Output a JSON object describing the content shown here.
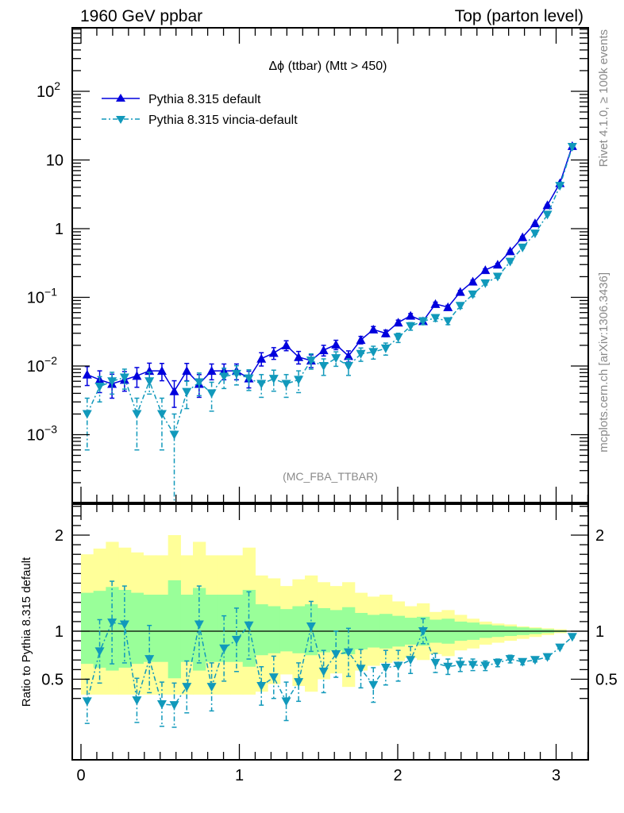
{
  "header": {
    "left": "1960 GeV ppbar",
    "right": "Top (parton level)"
  },
  "side_text": {
    "rivet": "Rivet 4.1.0, ≥ 100k events",
    "mcplots": "mcplots.cern.ch [arXiv:1306.3436]"
  },
  "chart_data": [
    {
      "type": "line",
      "panel": "main",
      "title": "Δϕ (ttbar) (Mtt > 450)",
      "watermark": "(MC_FBA_TTBAR)",
      "xlabel": "",
      "ylabel": "",
      "yscale": "log",
      "xlim": [
        0,
        3.2
      ],
      "ylim": [
        0.0001,
        900
      ],
      "x_ticks": [
        0,
        1,
        2,
        3
      ],
      "y_ticks": [
        "10^-3",
        "10^-2",
        "10^-1",
        "1",
        "10",
        "10^2"
      ],
      "legend_position": "top-left",
      "x": [
        0.039,
        0.118,
        0.196,
        0.275,
        0.353,
        0.432,
        0.511,
        0.589,
        0.668,
        0.746,
        0.825,
        0.903,
        0.982,
        1.06,
        1.139,
        1.217,
        1.296,
        1.374,
        1.453,
        1.532,
        1.61,
        1.689,
        1.767,
        1.846,
        1.924,
        2.003,
        2.081,
        2.16,
        2.238,
        2.317,
        2.395,
        2.474,
        2.553,
        2.631,
        2.71,
        2.788,
        2.867,
        2.945,
        3.024,
        3.102
      ],
      "series": [
        {
          "name": "Pythia 8.315 default",
          "color": "#0000dd",
          "marker": "triangle-up",
          "linestyle": "solid",
          "values": [
            0.0075,
            0.0063,
            0.0055,
            0.0063,
            0.0072,
            0.0085,
            0.0085,
            0.0043,
            0.0085,
            0.0055,
            0.0085,
            0.0085,
            0.0085,
            0.0066,
            0.0128,
            0.0155,
            0.02,
            0.0135,
            0.012,
            0.017,
            0.0205,
            0.014,
            0.024,
            0.034,
            0.03,
            0.043,
            0.054,
            0.045,
            0.08,
            0.072,
            0.12,
            0.17,
            0.25,
            0.3,
            0.47,
            0.75,
            1.2,
            2.2,
            4.6,
            16.0
          ],
          "err_lo": [
            0.0023,
            0.0022,
            0.0021,
            0.002,
            0.0023,
            0.0025,
            0.0024,
            0.0018,
            0.0024,
            0.002,
            0.0022,
            0.0022,
            0.0022,
            0.0018,
            0.0028,
            0.003,
            0.0033,
            0.0028,
            0.0025,
            0.003,
            0.0032,
            0.0026,
            0.003,
            0.0036,
            0.0033,
            0.0036,
            0.004,
            0.0036,
            0.005,
            0.0046,
            0.006,
            0.008,
            0.01,
            0.011,
            0.015,
            0.02,
            0.03,
            0.05,
            0.08,
            0.18
          ],
          "err_hi": [
            0.0023,
            0.0022,
            0.0021,
            0.002,
            0.0023,
            0.0025,
            0.0024,
            0.0018,
            0.0024,
            0.002,
            0.0022,
            0.0022,
            0.0022,
            0.0018,
            0.0028,
            0.003,
            0.0033,
            0.0028,
            0.0025,
            0.003,
            0.0032,
            0.0026,
            0.003,
            0.0036,
            0.0033,
            0.0036,
            0.004,
            0.0036,
            0.005,
            0.0046,
            0.006,
            0.008,
            0.01,
            0.011,
            0.015,
            0.02,
            0.03,
            0.05,
            0.08,
            0.18
          ]
        },
        {
          "name": "Pythia 8.315 vincia-default",
          "color": "#1199bb",
          "marker": "triangle-down",
          "linestyle": "dashdot",
          "values": [
            0.002,
            0.005,
            0.006,
            0.0068,
            0.002,
            0.006,
            0.002,
            0.001,
            0.0042,
            0.0058,
            0.004,
            0.007,
            0.0077,
            0.0066,
            0.0055,
            0.0065,
            0.0055,
            0.0063,
            0.012,
            0.01,
            0.013,
            0.01,
            0.015,
            0.016,
            0.018,
            0.026,
            0.038,
            0.045,
            0.05,
            0.045,
            0.075,
            0.11,
            0.16,
            0.2,
            0.33,
            0.53,
            0.85,
            1.6,
            4.2,
            15.5
          ],
          "err_lo": [
            0.0014,
            0.002,
            0.0021,
            0.0022,
            0.0014,
            0.0021,
            0.0014,
            0.001,
            0.0018,
            0.0021,
            0.0018,
            0.0023,
            0.0024,
            0.0022,
            0.002,
            0.0022,
            0.002,
            0.0022,
            0.003,
            0.0027,
            0.0031,
            0.0027,
            0.0033,
            0.0034,
            0.0036,
            0.004,
            0.0048,
            0.005,
            0.0052,
            0.005,
            0.006,
            0.008,
            0.009,
            0.01,
            0.013,
            0.017,
            0.02,
            0.04,
            0.07,
            0.17
          ],
          "err_hi": [
            0.0014,
            0.002,
            0.0021,
            0.0022,
            0.0014,
            0.0021,
            0.0014,
            0.001,
            0.0018,
            0.0021,
            0.0018,
            0.0023,
            0.0024,
            0.0022,
            0.002,
            0.0022,
            0.002,
            0.0022,
            0.003,
            0.0027,
            0.0031,
            0.0027,
            0.0033,
            0.0034,
            0.0036,
            0.004,
            0.0048,
            0.005,
            0.0052,
            0.005,
            0.006,
            0.008,
            0.009,
            0.01,
            0.013,
            0.017,
            0.02,
            0.04,
            0.07,
            0.17
          ]
        }
      ]
    },
    {
      "type": "line",
      "panel": "ratio",
      "ylabel": "Ratio to Pythia 8.315 default",
      "xlim": [
        0,
        3.2
      ],
      "ylim": [
        0.34,
        2.32
      ],
      "x_ticks": [
        "0",
        "1",
        "2",
        "3"
      ],
      "y_ticks": [
        "0.5",
        "1",
        "2"
      ],
      "reference_line": 1,
      "bin_edges_count": 40,
      "band_1sigma": {
        "color": "#99ff99",
        "lo": [
          0.66,
          0.62,
          0.59,
          0.62,
          0.66,
          0.68,
          0.68,
          0.51,
          0.68,
          0.59,
          0.68,
          0.68,
          0.68,
          0.63,
          0.75,
          0.77,
          0.79,
          0.77,
          0.75,
          0.78,
          0.8,
          0.76,
          0.81,
          0.83,
          0.82,
          0.84,
          0.86,
          0.85,
          0.88,
          0.87,
          0.9,
          0.91,
          0.93,
          0.94,
          0.95,
          0.96,
          0.97,
          0.98,
          0.99,
          1.0
        ],
        "hi": [
          1.4,
          1.42,
          1.46,
          1.43,
          1.4,
          1.38,
          1.38,
          1.53,
          1.38,
          1.45,
          1.38,
          1.38,
          1.38,
          1.43,
          1.28,
          1.26,
          1.23,
          1.26,
          1.28,
          1.24,
          1.22,
          1.25,
          1.19,
          1.17,
          1.18,
          1.16,
          1.14,
          1.15,
          1.12,
          1.13,
          1.1,
          1.09,
          1.07,
          1.06,
          1.05,
          1.04,
          1.03,
          1.02,
          1.01,
          1.0
        ]
      },
      "band_2sigma": {
        "color": "#ffff99",
        "lo": [
          0.34,
          0.34,
          0.34,
          0.34,
          0.34,
          0.34,
          0.34,
          0.34,
          0.34,
          0.34,
          0.34,
          0.34,
          0.34,
          0.34,
          0.37,
          0.45,
          0.55,
          0.43,
          0.37,
          0.5,
          0.56,
          0.42,
          0.59,
          0.64,
          0.67,
          0.69,
          0.72,
          0.7,
          0.76,
          0.74,
          0.8,
          0.82,
          0.86,
          0.88,
          0.9,
          0.92,
          0.94,
          0.96,
          0.98,
          1.0
        ],
        "hi": [
          1.8,
          1.86,
          1.93,
          1.87,
          1.82,
          1.79,
          1.79,
          2.0,
          1.79,
          1.93,
          1.79,
          1.79,
          1.79,
          1.87,
          1.58,
          1.55,
          1.47,
          1.54,
          1.58,
          1.51,
          1.47,
          1.51,
          1.4,
          1.36,
          1.38,
          1.31,
          1.26,
          1.29,
          1.2,
          1.22,
          1.17,
          1.13,
          1.1,
          1.08,
          1.07,
          1.05,
          1.04,
          1.03,
          1.02,
          1.0
        ]
      },
      "series": [
        {
          "name": "Pythia 8.315 vincia-default / default",
          "color": "#1199bb",
          "marker": "triangle-down",
          "values": [
            0.27,
            0.79,
            1.09,
            1.07,
            0.28,
            0.71,
            0.24,
            0.23,
            0.42,
            1.07,
            0.42,
            0.82,
            0.91,
            1.06,
            0.43,
            0.52,
            0.27,
            0.47,
            1.05,
            0.58,
            0.76,
            0.78,
            0.61,
            0.44,
            0.62,
            0.64,
            0.7,
            1.0,
            0.67,
            0.63,
            0.65,
            0.65,
            0.64,
            0.67,
            0.71,
            0.68,
            0.7,
            0.73,
            0.83,
            0.94
          ],
          "err_lo": [
            0.23,
            0.33,
            0.43,
            0.4,
            0.23,
            0.35,
            0.23,
            0.23,
            0.27,
            0.4,
            0.25,
            0.34,
            0.33,
            0.35,
            0.2,
            0.22,
            0.2,
            0.2,
            0.26,
            0.22,
            0.24,
            0.25,
            0.2,
            0.18,
            0.18,
            0.16,
            0.14,
            0.13,
            0.1,
            0.08,
            0.07,
            0.06,
            0.05,
            0.04,
            0.04,
            0.03,
            0.02,
            0.02,
            0.01,
            0.01
          ],
          "err_hi": [
            0.23,
            0.33,
            0.43,
            0.4,
            0.23,
            0.35,
            0.23,
            0.23,
            0.27,
            0.4,
            0.25,
            0.34,
            0.33,
            0.35,
            0.2,
            0.22,
            0.2,
            0.2,
            0.26,
            0.22,
            0.24,
            0.25,
            0.2,
            0.18,
            0.18,
            0.16,
            0.14,
            0.13,
            0.1,
            0.08,
            0.07,
            0.06,
            0.05,
            0.04,
            0.04,
            0.03,
            0.02,
            0.02,
            0.01,
            0.01
          ]
        }
      ]
    }
  ]
}
